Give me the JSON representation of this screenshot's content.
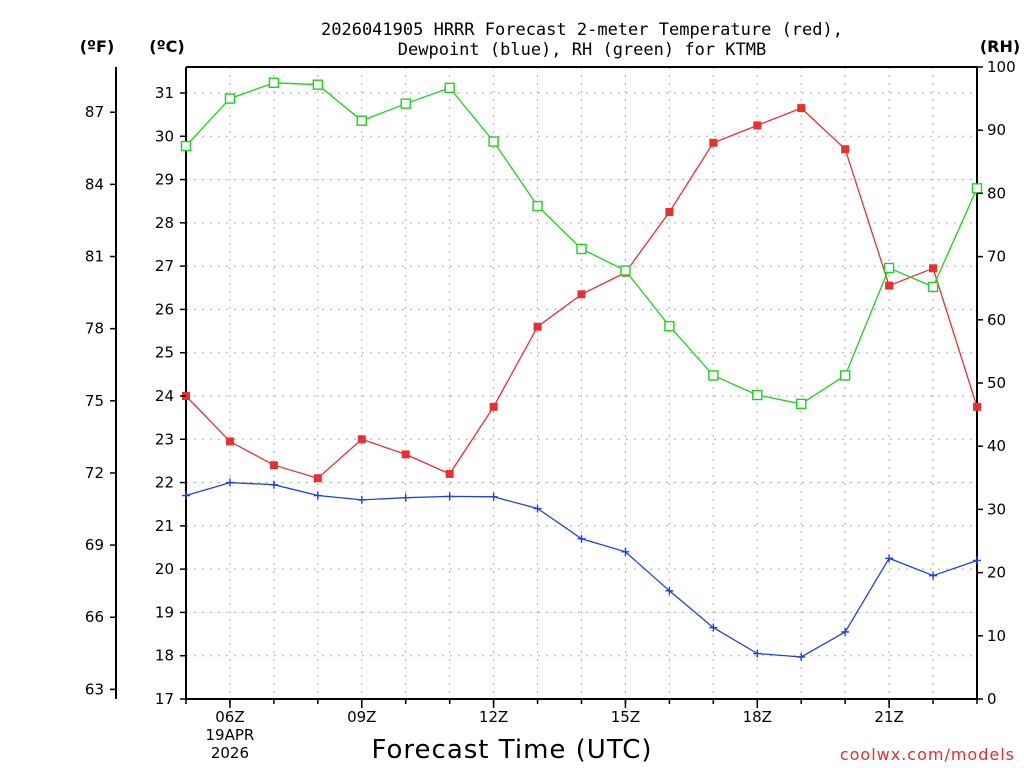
{
  "chart_data": {
    "type": "line",
    "title_lines": [
      "2026041905 HRRR Forecast 2-meter Temperature (red),",
      "Dewpoint (blue), RH (green) for KTMB"
    ],
    "unit_labels": {
      "fahrenheit": "(ºF)",
      "celsius": "(ºC)",
      "rh": "(RH)"
    },
    "xlabel": "Forecast Time (UTC)",
    "credit": "coolwx.com/models",
    "x_hours": [
      5,
      6,
      7,
      8,
      9,
      10,
      11,
      12,
      13,
      14,
      15,
      16,
      17,
      18,
      19,
      20,
      21,
      22,
      23
    ],
    "xlim": [
      5,
      23
    ],
    "x_ticks": [
      {
        "hour": 6,
        "label": "06Z",
        "sub1": "19APR",
        "sub2": "2026"
      },
      {
        "hour": 9,
        "label": "09Z",
        "sub1": "",
        "sub2": ""
      },
      {
        "hour": 12,
        "label": "12Z",
        "sub1": "",
        "sub2": ""
      },
      {
        "hour": 15,
        "label": "15Z",
        "sub1": "",
        "sub2": ""
      },
      {
        "hour": 18,
        "label": "18Z",
        "sub1": "",
        "sub2": ""
      },
      {
        "hour": 21,
        "label": "21Z",
        "sub1": "",
        "sub2": ""
      }
    ],
    "celsius_axis": {
      "range": [
        17,
        31.6
      ],
      "ticks": [
        17,
        18,
        19,
        20,
        21,
        22,
        23,
        24,
        25,
        26,
        27,
        28,
        29,
        30,
        31
      ]
    },
    "fahrenheit_axis": {
      "ticks": [
        63,
        66,
        69,
        72,
        75,
        78,
        81,
        84,
        87
      ]
    },
    "rh_axis": {
      "range": [
        0,
        100
      ],
      "ticks": [
        0,
        10,
        20,
        30,
        40,
        50,
        60,
        70,
        80,
        90,
        100
      ]
    },
    "series": [
      {
        "name": "2-meter Temperature",
        "unit": "C",
        "color": "#e83030",
        "marker": "filled-square",
        "values": [
          24.0,
          22.95,
          22.4,
          22.1,
          23.0,
          22.65,
          22.2,
          23.75,
          25.6,
          26.35,
          26.85,
          28.25,
          29.85,
          30.25,
          30.65,
          29.7,
          26.55,
          26.95,
          23.75
        ]
      },
      {
        "name": "Dewpoint",
        "unit": "C",
        "color": "#2040e0",
        "marker": "plus",
        "values": [
          21.7,
          22.0,
          21.95,
          21.7,
          21.6,
          21.65,
          21.68,
          21.67,
          21.4,
          20.7,
          20.4,
          19.5,
          18.65,
          18.05,
          17.97,
          18.55,
          20.25,
          19.85,
          20.2
        ]
      },
      {
        "name": "RH",
        "unit": "%",
        "color": "#20d020",
        "marker": "open-square",
        "values": [
          87.5,
          95.0,
          97.5,
          97.2,
          91.5,
          94.2,
          96.7,
          88.2,
          78.0,
          71.2,
          67.8,
          59.0,
          51.2,
          48.1,
          46.7,
          51.2,
          68.2,
          65.2,
          80.8
        ]
      }
    ]
  }
}
